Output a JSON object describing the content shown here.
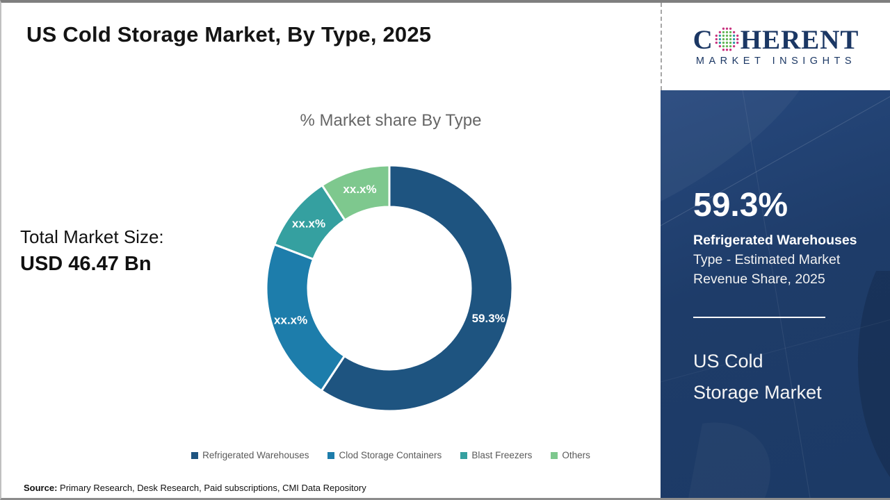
{
  "page": {
    "title": "US Cold Storage Market, By Type, 2025"
  },
  "logo": {
    "brand_left": "C",
    "brand_right": "HERENT",
    "brand_sub": "MARKET INSIGHTS",
    "globe_icon": "dotted-globe-icon",
    "colors": {
      "navy": "#1b3764",
      "magenta": "#c8337f",
      "teal": "#2f9ba4",
      "green": "#63b656"
    }
  },
  "left_panel": {
    "total_label": "Total Market Size:",
    "total_value": "USD 46.47 Bn"
  },
  "chart_data": {
    "type": "donut",
    "title": "% Market share By Type",
    "start_angle_deg": 0,
    "direction": "clockwise",
    "legend_position": "bottom",
    "slices": [
      {
        "name": "Refrigerated Warehouses",
        "label": "59.3%",
        "value": 59.3,
        "color": "#1e5480"
      },
      {
        "name": "Clod Storage Containers",
        "label": "xx.x%",
        "value": 21.5,
        "color": "#1d7dab"
      },
      {
        "name": "Blast Freezers",
        "label": "xx.x%",
        "value": 10.0,
        "color": "#35a0a0"
      },
      {
        "name": "Others",
        "label": "xx.x%",
        "value": 9.2,
        "color": "#7ec88e"
      }
    ]
  },
  "sidebar": {
    "bg_color": "#1e3c69",
    "stat_value": "59.3%",
    "stat_title": "Refrigerated Warehouses",
    "stat_line2": "Type - Estimated Market",
    "stat_line3": "Revenue Share, 2025",
    "market_name": "US Cold\nStorage Market"
  },
  "footer": {
    "source_label": "Source:",
    "source_text": " Primary Research, Desk Research, Paid subscriptions, CMI Data Repository"
  }
}
